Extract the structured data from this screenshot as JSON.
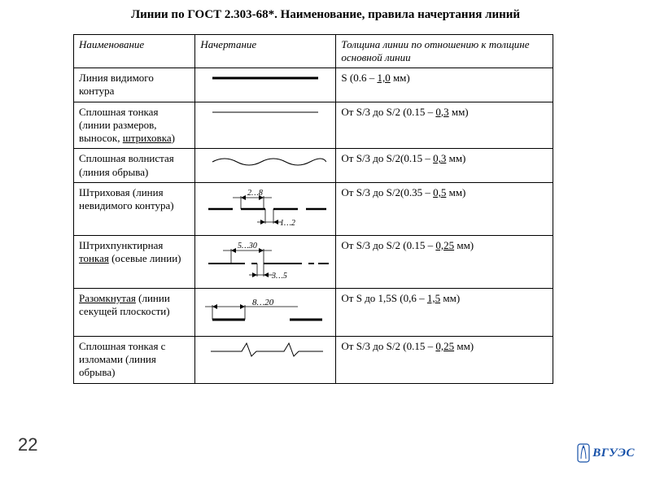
{
  "doc": {
    "title": "Линии по ГОСТ 2.303-68*. Наименование, правила начертания линий",
    "page_number": "22",
    "logo_text": "ВГУЭС"
  },
  "headers": {
    "name": "Наименование",
    "drawing": "Начертание",
    "thickness": "Толщина линии по отношению к толщине основной линии"
  },
  "rows": [
    {
      "name_html": "Линия видимого контура",
      "thick_html": "S (0.6 – <span class=\"u\">1,0</span> мм)",
      "svg": "<svg width=\"150\" height=\"16\"><line x1=\"10\" y1=\"8\" x2=\"140\" y2=\"8\" stroke=\"#000\" stroke-width=\"3\"/></svg>"
    },
    {
      "name_html": "Сплошная тонкая (линии размеров, выносок, <span class=\"u\">штриховка</span>)",
      "thick_html": "От S/3 до S/2 (0.15 – <span class=\"u\">0,3</span> мм)",
      "svg": "<svg width=\"150\" height=\"16\"><line x1=\"10\" y1=\"8\" x2=\"140\" y2=\"8\" stroke=\"#000\" stroke-width=\"1\"/></svg>"
    },
    {
      "name_html": "Сплошная волнистая (линия обрыва)",
      "thick_html": "От S/3 до S/2(0.15 – <span class=\"u\">0,3</span> мм)",
      "svg": "<svg width=\"150\" height=\"20\"><path d=\"M10 12 Q25 4 40 12 T70 12 T100 12 T130 12 T150 12\" fill=\"none\" stroke=\"#000\" stroke-width=\"1\"/></svg>"
    },
    {
      "name_html": "Штриховая (линия невидимого контура)",
      "thick_html": "От S/3 до S/2(0.35 – <span class=\"u\">0,5</span> мм)",
      "svg": "<svg width=\"160\" height=\"56\"><line x1=\"10\" y1=\"28\" x2=\"40\" y2=\"28\" stroke=\"#000\" stroke-width=\"2.5\"/><line x1=\"50\" y1=\"28\" x2=\"80\" y2=\"28\" stroke=\"#000\" stroke-width=\"2.5\"/><line x1=\"90\" y1=\"28\" x2=\"120\" y2=\"28\" stroke=\"#000\" stroke-width=\"2.5\"/><line x1=\"130\" y1=\"28\" x2=\"155\" y2=\"28\" stroke=\"#000\" stroke-width=\"2.5\"/><line x1=\"50\" y1=\"28\" x2=\"50\" y2=\"12\" stroke=\"#000\" stroke-width=\"0.8\"/><line x1=\"78\" y1=\"28\" x2=\"78\" y2=\"12\" stroke=\"#000\" stroke-width=\"0.8\"/><line x1=\"40\" y1=\"14\" x2=\"88\" y2=\"14\" stroke=\"#000\" stroke-width=\"0.8\"/><polygon points=\"50,14 56,11 56,17\" fill=\"#000\"/><polygon points=\"78,14 72,11 72,17\" fill=\"#000\"/><text x=\"58\" y=\"11\" font-size=\"10\" font-style=\"italic\" font-family=\"Times New Roman\">2…8</text><line x1=\"80\" y1=\"28\" x2=\"80\" y2=\"46\" stroke=\"#000\" stroke-width=\"0.8\"/><line x1=\"90\" y1=\"28\" x2=\"90\" y2=\"46\" stroke=\"#000\" stroke-width=\"0.8\"/><line x1=\"70\" y1=\"44\" x2=\"100\" y2=\"44\" stroke=\"#000\" stroke-width=\"0.8\"/><polygon points=\"80,44 74,41 74,47\" fill=\"#000\"/><polygon points=\"90,44 96,41 96,47\" fill=\"#000\"/><text x=\"98\" y=\"48\" font-size=\"10\" font-style=\"italic\" font-family=\"Times New Roman\">1…2</text></svg>"
    },
    {
      "name_html": "Штрихпунктирная <span class=\"u\">тонкая</span> (осевые линии)",
      "thick_html": "От S/3 до S/2 (0.15 – <span class=\"u\">0,25</span> мм)",
      "svg": "<svg width=\"160\" height=\"56\"><line x1=\"10\" y1=\"30\" x2=\"55\" y2=\"30\" stroke=\"#000\" stroke-width=\"2\"/><line x1=\"63\" y1=\"30\" x2=\"70\" y2=\"30\" stroke=\"#000\" stroke-width=\"2\"/><line x1=\"78\" y1=\"30\" x2=\"125\" y2=\"30\" stroke=\"#000\" stroke-width=\"2\"/><line x1=\"133\" y1=\"30\" x2=\"140\" y2=\"30\" stroke=\"#000\" stroke-width=\"2\"/><line x1=\"145\" y1=\"30\" x2=\"158\" y2=\"30\" stroke=\"#000\" stroke-width=\"2\"/><line x1=\"38\" y1=\"30\" x2=\"38\" y2=\"12\" stroke=\"#000\" stroke-width=\"0.8\"/><line x1=\"78\" y1=\"30\" x2=\"78\" y2=\"12\" stroke=\"#000\" stroke-width=\"0.8\"/><line x1=\"28\" y1=\"14\" x2=\"88\" y2=\"14\" stroke=\"#000\" stroke-width=\"0.8\"/><polygon points=\"38,14 44,11 44,17\" fill=\"#000\"/><polygon points=\"78,14 72,11 72,17\" fill=\"#000\"/><text x=\"46\" y=\"11\" font-size=\"10\" font-style=\"italic\" font-family=\"Times New Roman\">5…30</text><line x1=\"70\" y1=\"30\" x2=\"70\" y2=\"46\" stroke=\"#000\" stroke-width=\"0.8\"/><line x1=\"78\" y1=\"30\" x2=\"78\" y2=\"46\" stroke=\"#000\" stroke-width=\"0.8\"/><line x1=\"60\" y1=\"44\" x2=\"90\" y2=\"44\" stroke=\"#000\" stroke-width=\"0.8\"/><polygon points=\"70,44 64,41 64,47\" fill=\"#000\"/><polygon points=\"78,44 84,41 84,47\" fill=\"#000\"/><text x=\"88\" y=\"48\" font-size=\"10\" font-style=\"italic\" font-family=\"Times New Roman\">3…5</text></svg>"
    },
    {
      "name_html": "<span class=\"u\">Разомкнутая</span> (линии секущей плоскости)",
      "thick_html": "От S до 1,5S (0,6 – <span class=\"u\">1,5</span> мм)",
      "svg": "<svg width=\"160\" height=\"50\"><line x1=\"15\" y1=\"34\" x2=\"55\" y2=\"34\" stroke=\"#000\" stroke-width=\"3\"/><line x1=\"110\" y1=\"34\" x2=\"150\" y2=\"34\" stroke=\"#000\" stroke-width=\"3\"/><line x1=\"15\" y1=\"34\" x2=\"15\" y2=\"16\" stroke=\"#000\" stroke-width=\"0.8\"/><line x1=\"55\" y1=\"34\" x2=\"55\" y2=\"16\" stroke=\"#000\" stroke-width=\"0.8\"/><line x1=\"6\" y1=\"18\" x2=\"120\" y2=\"18\" stroke=\"#000\" stroke-width=\"0.8\"/><polygon points=\"15,18 21,15 21,21\" fill=\"#000\"/><polygon points=\"55,18 49,15 49,21\" fill=\"#000\"/><text x=\"64\" y=\"16\" font-size=\"11\" font-style=\"italic\" font-family=\"Times New Roman\">8…20</text></svg>"
    },
    {
      "name_html": "Сплошная тонкая с изломами (линия обрыва)",
      "thick_html": "От S/3 до S/2 (0.15 – <span class=\"u\">0,25</span> мм)",
      "svg": "<svg width=\"150\" height=\"22\"><path d=\"M8 14 L46 14 L52 4 L58 20 L64 14 L98 14 L104 4 L110 20 L116 14 L146 14\" fill=\"none\" stroke=\"#000\" stroke-width=\"1\"/></svg>"
    }
  ]
}
